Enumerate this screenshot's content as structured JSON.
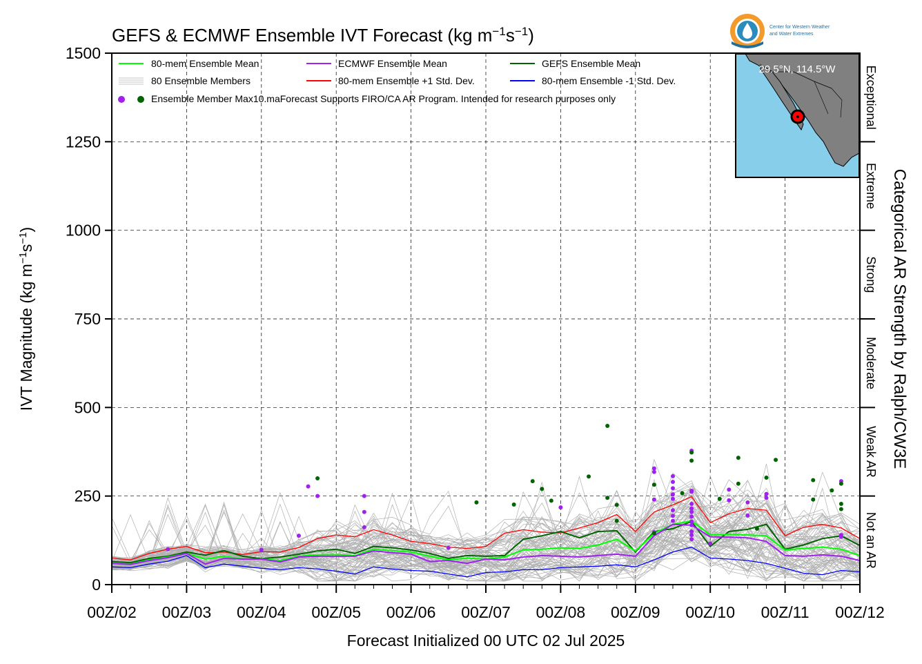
{
  "header": {
    "title_main": "GEFS & ECMWF Ensemble IVT Forecast (kg m",
    "title_exp1": "−1",
    "title_mid": "s",
    "title_exp2": "−1",
    "title_end": ")",
    "logo_line1": "Center for Western Weather",
    "logo_line2": "and Water Extremes"
  },
  "inset": {
    "coord_label": "29.5°N, 114.5°W",
    "ocean_color": "#87ceeb",
    "land_color": "#808080",
    "marker_color": "#ff0000"
  },
  "right_axis": {
    "title": "Categorical AR Strength by Ralph/CW3E"
  },
  "legend": {
    "row1": [
      "80-mem Ensemble Mean",
      "ECMWF Ensemble Mean",
      "GEFS Ensemble Mean"
    ],
    "row2": [
      "80 Ensemble Members",
      "80-mem Ensemble +1 Std. Dev.",
      "80-mem Ensemble -1 Std. Dev."
    ],
    "row3": "Ensemble Member Max10.maForecast Supports FIRO/CA AR Program. Intended for research purposes only"
  },
  "chart_data": {
    "type": "line",
    "xlabel": "Forecast Initialized 00 UTC 02 Jul 2025",
    "ylabel_main": "IVT Magnitude (kg m",
    "ylabel_exp1": "−1",
    "ylabel_mid": "s",
    "ylabel_exp2": "−1",
    "ylabel_end": ")",
    "xlim": [
      0,
      240
    ],
    "ylim": [
      0,
      1500
    ],
    "x_tick_hours": [
      0,
      24,
      48,
      72,
      96,
      120,
      144,
      168,
      192,
      216,
      240
    ],
    "x_tick_labels": [
      "00Z/02",
      "00Z/03",
      "00Z/04",
      "00Z/05",
      "00Z/06",
      "00Z/07",
      "00Z/08",
      "00Z/09",
      "00Z/10",
      "00Z/11",
      "00Z/12"
    ],
    "y_ticks": [
      0,
      250,
      500,
      750,
      1000,
      1250,
      1500
    ],
    "grid": true,
    "categories": [
      {
        "label": "Not an AR",
        "from": 0,
        "to": 250
      },
      {
        "label": "Weak AR",
        "from": 250,
        "to": 500
      },
      {
        "label": "Moderate",
        "from": 500,
        "to": 750
      },
      {
        "label": "Strong",
        "from": 750,
        "to": 1000
      },
      {
        "label": "Extreme",
        "from": 1000,
        "to": 1250
      },
      {
        "label": "Exceptional",
        "from": 1250,
        "to": 1500
      }
    ],
    "series": [
      {
        "name": "80-mem Ensemble +1 Std. Dev.",
        "color": "#ff0000",
        "width": 1.3,
        "x": [
          0,
          6,
          12,
          18,
          24,
          30,
          36,
          42,
          48,
          54,
          60,
          66,
          72,
          78,
          84,
          90,
          96,
          102,
          108,
          114,
          120,
          126,
          132,
          138,
          144,
          150,
          156,
          162,
          168,
          174,
          180,
          186,
          192,
          198,
          204,
          210,
          216,
          222,
          228,
          234,
          240
        ],
        "values": [
          75,
          70,
          88,
          100,
          108,
          90,
          92,
          85,
          93,
          92,
          105,
          130,
          140,
          135,
          155,
          140,
          122,
          116,
          106,
          102,
          108,
          145,
          155,
          148,
          146,
          160,
          175,
          198,
          150,
          205,
          225,
          248,
          175,
          200,
          215,
          210,
          138,
          162,
          170,
          160,
          130
        ]
      },
      {
        "name": "GEFS Ensemble Mean",
        "color": "#006400",
        "width": 2,
        "x": [
          0,
          6,
          12,
          18,
          24,
          30,
          36,
          42,
          48,
          54,
          60,
          66,
          72,
          78,
          84,
          90,
          96,
          102,
          108,
          114,
          120,
          126,
          132,
          138,
          144,
          150,
          156,
          162,
          168,
          174,
          180,
          186,
          192,
          198,
          204,
          210,
          216,
          222,
          228,
          234,
          240
        ],
        "values": [
          65,
          62,
          74,
          80,
          92,
          83,
          96,
          80,
          73,
          78,
          86,
          95,
          100,
          88,
          108,
          104,
          98,
          88,
          74,
          82,
          80,
          82,
          128,
          138,
          150,
          132,
          150,
          152,
          92,
          150,
          158,
          178,
          108,
          150,
          156,
          170,
          100,
          112,
          130,
          138,
          110
        ]
      },
      {
        "name": "80-mem Ensemble Mean",
        "color": "#00ff00",
        "width": 2,
        "x": [
          0,
          6,
          12,
          18,
          24,
          30,
          36,
          42,
          48,
          54,
          60,
          66,
          72,
          78,
          84,
          90,
          96,
          102,
          108,
          114,
          120,
          126,
          132,
          138,
          144,
          150,
          156,
          162,
          168,
          174,
          180,
          186,
          192,
          198,
          204,
          210,
          216,
          222,
          228,
          234,
          240
        ],
        "values": [
          60,
          58,
          70,
          78,
          88,
          72,
          80,
          72,
          72,
          68,
          80,
          84,
          85,
          82,
          100,
          96,
          92,
          80,
          70,
          75,
          72,
          78,
          98,
          100,
          104,
          102,
          112,
          128,
          95,
          145,
          170,
          180,
          140,
          142,
          140,
          138,
          98,
          102,
          106,
          100,
          82
        ]
      },
      {
        "name": "ECMWF Ensemble Mean",
        "color": "#a020f0",
        "width": 2,
        "x": [
          0,
          6,
          12,
          18,
          24,
          30,
          36,
          42,
          48,
          54,
          60,
          66,
          72,
          78,
          84,
          90,
          96,
          102,
          108,
          114,
          120,
          126,
          132,
          138,
          144,
          150,
          156,
          162,
          168,
          174,
          180,
          186,
          192,
          198,
          204,
          210,
          216,
          222,
          228,
          234,
          240
        ],
        "values": [
          60,
          57,
          68,
          76,
          88,
          58,
          74,
          72,
          72,
          64,
          78,
          80,
          80,
          80,
          95,
          90,
          86,
          65,
          68,
          60,
          72,
          70,
          78,
          82,
          80,
          78,
          82,
          86,
          80,
          138,
          170,
          168,
          135,
          134,
          132,
          122,
          82,
          80,
          84,
          80,
          68
        ]
      },
      {
        "name": "80-mem Ensemble -1 Std. Dev.",
        "color": "#0000ff",
        "width": 1.3,
        "x": [
          0,
          6,
          12,
          18,
          24,
          30,
          36,
          42,
          48,
          54,
          60,
          66,
          72,
          78,
          84,
          90,
          96,
          102,
          108,
          114,
          120,
          126,
          132,
          138,
          144,
          150,
          156,
          162,
          168,
          174,
          180,
          186,
          192,
          198,
          204,
          210,
          216,
          222,
          228,
          234,
          240
        ],
        "values": [
          50,
          48,
          58,
          66,
          82,
          48,
          58,
          52,
          46,
          42,
          48,
          44,
          38,
          30,
          50,
          44,
          40,
          38,
          30,
          22,
          34,
          36,
          42,
          42,
          48,
          50,
          52,
          56,
          50,
          70,
          92,
          106,
          75,
          72,
          68,
          60,
          46,
          32,
          28,
          40,
          36
        ]
      }
    ],
    "ensemble_members": {
      "count": 80,
      "color": "#b0b0b0"
    },
    "max_markers": {
      "ecmwf_color": "#a020f0",
      "gefs_color": "#006400",
      "ecmwf": [
        [
          18,
          100
        ],
        [
          48,
          98
        ],
        [
          60,
          138
        ],
        [
          63,
          277
        ],
        [
          66,
          250
        ],
        [
          81,
          250
        ],
        [
          81,
          205
        ],
        [
          81,
          162
        ],
        [
          108,
          104
        ],
        [
          144,
          218
        ],
        [
          174,
          328
        ],
        [
          174,
          318
        ],
        [
          174,
          240
        ],
        [
          174,
          148
        ],
        [
          180,
          306
        ],
        [
          180,
          290
        ],
        [
          180,
          272
        ],
        [
          180,
          255
        ],
        [
          180,
          242
        ],
        [
          180,
          210
        ],
        [
          180,
          194
        ],
        [
          180,
          180
        ],
        [
          186,
          378
        ],
        [
          186,
          265
        ],
        [
          186,
          262
        ],
        [
          186,
          228
        ],
        [
          186,
          215
        ],
        [
          186,
          205
        ],
        [
          186,
          192
        ],
        [
          186,
          178
        ],
        [
          186,
          168
        ],
        [
          186,
          150
        ],
        [
          186,
          140
        ],
        [
          186,
          128
        ],
        [
          192,
          116
        ],
        [
          198,
          268
        ],
        [
          198,
          238
        ],
        [
          204,
          232
        ],
        [
          204,
          195
        ],
        [
          210,
          256
        ],
        [
          210,
          245
        ],
        [
          234,
          292
        ],
        [
          234,
          140
        ],
        [
          234,
          135
        ]
      ],
      "gefs": [
        [
          66,
          300
        ],
        [
          117,
          232
        ],
        [
          129,
          226
        ],
        [
          135,
          292
        ],
        [
          138,
          270
        ],
        [
          141,
          237
        ],
        [
          153,
          305
        ],
        [
          159,
          448
        ],
        [
          159,
          245
        ],
        [
          162,
          225
        ],
        [
          162,
          180
        ],
        [
          174,
          282
        ],
        [
          174,
          145
        ],
        [
          183,
          258
        ],
        [
          186,
          373
        ],
        [
          186,
          350
        ],
        [
          195,
          242
        ],
        [
          201,
          358
        ],
        [
          201,
          285
        ],
        [
          207,
          158
        ],
        [
          210,
          302
        ],
        [
          213,
          352
        ],
        [
          225,
          295
        ],
        [
          225,
          240
        ],
        [
          231,
          266
        ],
        [
          234,
          285
        ],
        [
          234,
          228
        ],
        [
          234,
          213
        ]
      ]
    }
  }
}
